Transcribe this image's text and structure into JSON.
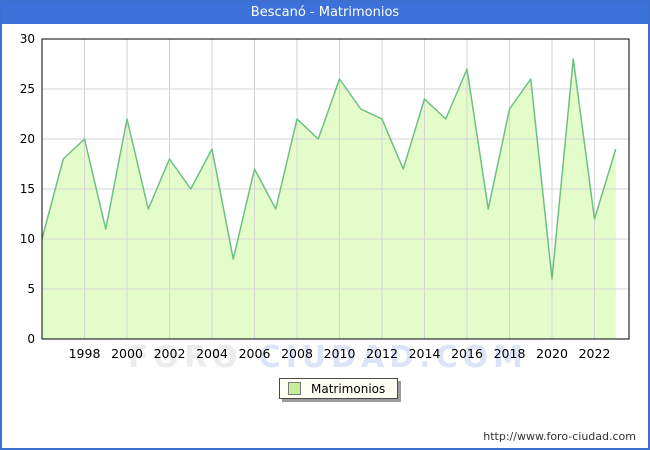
{
  "window": {
    "title": "Bescanó - Matrimonios"
  },
  "watermark": {
    "part1": "FORO",
    "part2": "CIUDAD.COM"
  },
  "legend": {
    "label": "Matrimonios"
  },
  "footer": {
    "url": "http://www.foro-ciudad.com"
  },
  "colors": {
    "frame_border": "#3d6fd1",
    "title_bar": "#3b71d8",
    "title_text": "#ffffff",
    "area_fill": "#e4fbca",
    "line_stroke": "#6cc083",
    "legend_swatch": "#c6ec9c",
    "gridline": "#d4d4d4",
    "plot_border": "#000000",
    "axis_text": "#000000"
  },
  "chart_data": {
    "type": "area",
    "title": "Bescanó - Matrimonios",
    "x": [
      1996,
      1997,
      1998,
      1999,
      2000,
      2001,
      2002,
      2003,
      2004,
      2005,
      2006,
      2007,
      2008,
      2009,
      2010,
      2011,
      2012,
      2013,
      2014,
      2015,
      2016,
      2017,
      2018,
      2019,
      2020,
      2021,
      2022,
      2023
    ],
    "series": [
      {
        "name": "Matrimonios",
        "values": [
          10,
          18,
          20,
          11,
          22,
          13,
          18,
          15,
          19,
          8,
          17,
          13,
          22,
          20,
          26,
          23,
          22,
          17,
          24,
          22,
          27,
          13,
          23,
          26,
          6,
          28,
          12,
          19
        ]
      }
    ],
    "xlabel": "",
    "ylabel": "",
    "ylim": [
      0,
      30
    ],
    "y_ticks": [
      0,
      5,
      10,
      15,
      20,
      25,
      30
    ],
    "x_tick_labels": [
      1998,
      2000,
      2002,
      2004,
      2006,
      2008,
      2010,
      2012,
      2014,
      2016,
      2018,
      2020,
      2022
    ],
    "grid": true,
    "legend_position": "bottom-center"
  }
}
